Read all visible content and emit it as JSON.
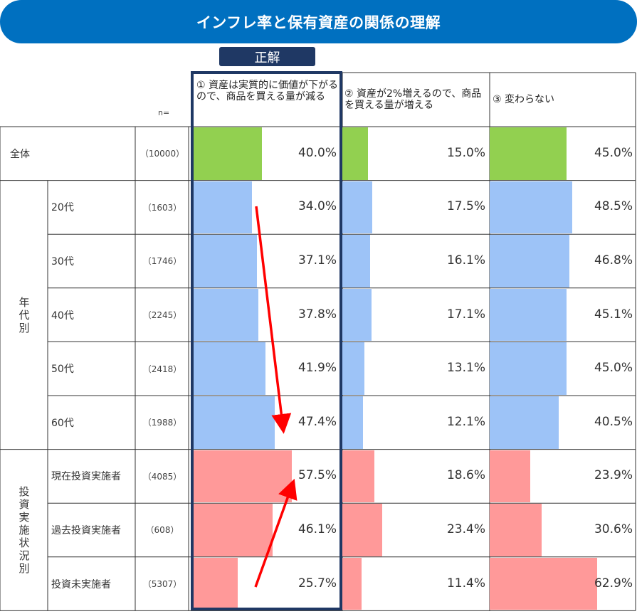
{
  "title": "インフレ率と保有資産の関係の理解",
  "correct_label": "正解",
  "n_label": "n=",
  "columns": [
    "① 資産は実質的に価値が下がるので、商品を買える量が減る",
    "② 資産が2%増えるので、商品を買える量が増える",
    "③ 変わらない"
  ],
  "groups": [
    {
      "label": "年\n代\n別"
    },
    {
      "label": "投\n資\n実\n施\n状\n況\n別"
    }
  ],
  "colors": {
    "total": "#92D050",
    "age": "#9DC3F7",
    "invest": "#FF9999",
    "highlight": "#1F3864",
    "banner": "#0070C0",
    "arrow": "#FF0000"
  },
  "chart_data": {
    "type": "bar",
    "x_unit": "%",
    "series_names": [
      "① 資産は実質的に価値が下がるので、商品を買える量が減る",
      "② 資産が2%増えるので、商品を買える量が増える",
      "③ 変わらない"
    ],
    "rows": [
      {
        "label": "全体",
        "n": "（10000）",
        "group": "total",
        "values": [
          40.0,
          15.0,
          45.0
        ],
        "labels": [
          "40.0%",
          "15.0%",
          "45.0%"
        ]
      },
      {
        "label": "20代",
        "n": "（1603）",
        "group": "age",
        "values": [
          34.0,
          17.5,
          48.5
        ],
        "labels": [
          "34.0%",
          "17.5%",
          "48.5%"
        ]
      },
      {
        "label": "30代",
        "n": "（1746）",
        "group": "age",
        "values": [
          37.1,
          16.1,
          46.8
        ],
        "labels": [
          "37.1%",
          "16.1%",
          "46.8%"
        ]
      },
      {
        "label": "40代",
        "n": "（2245）",
        "group": "age",
        "values": [
          37.8,
          17.1,
          45.1
        ],
        "labels": [
          "37.8%",
          "17.1%",
          "45.1%"
        ]
      },
      {
        "label": "50代",
        "n": "（2418）",
        "group": "age",
        "values": [
          41.9,
          13.1,
          45.0
        ],
        "labels": [
          "41.9%",
          "13.1%",
          "45.0%"
        ]
      },
      {
        "label": "60代",
        "n": "（1988）",
        "group": "age",
        "values": [
          47.4,
          12.1,
          40.5
        ],
        "labels": [
          "47.4%",
          "12.1%",
          "40.5%"
        ]
      },
      {
        "label": "現在投資実施者",
        "n": "（4085）",
        "group": "invest",
        "values": [
          57.5,
          18.6,
          23.9
        ],
        "labels": [
          "57.5%",
          "18.6%",
          "23.9%"
        ]
      },
      {
        "label": "過去投資実施者",
        "n": "（608）",
        "group": "invest",
        "values": [
          46.1,
          23.4,
          30.6
        ],
        "labels": [
          "46.1%",
          "23.4%",
          "30.6%"
        ]
      },
      {
        "label": "投資未実施者",
        "n": "（5307）",
        "group": "invest",
        "values": [
          25.7,
          11.4,
          62.9
        ],
        "labels": [
          "25.7%",
          "11.4%",
          "62.9%"
        ]
      }
    ]
  }
}
